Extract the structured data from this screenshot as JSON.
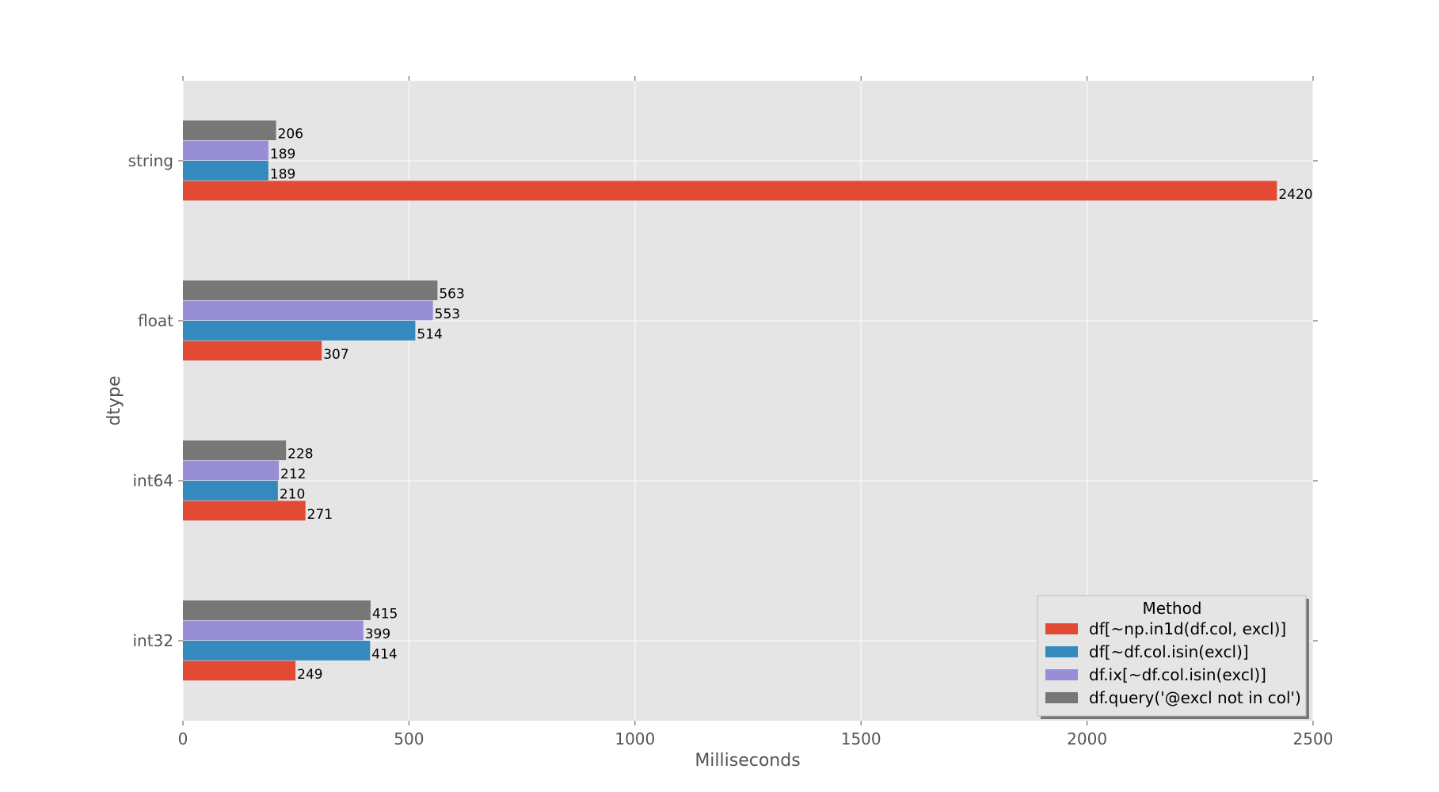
{
  "chart_data": {
    "type": "bar",
    "orientation": "horizontal",
    "categories": [
      "int32",
      "int64",
      "float",
      "string"
    ],
    "series": [
      {
        "name": "df[~np.in1d(df.col, excl)]",
        "values": [
          249,
          271,
          307,
          2420
        ],
        "color": "#E24A33"
      },
      {
        "name": "df[~df.col.isin(excl)]",
        "values": [
          414,
          210,
          514,
          189
        ],
        "color": "#348ABD"
      },
      {
        "name": "df.ix[~df.col.isin(excl)]",
        "values": [
          399,
          212,
          553,
          189
        ],
        "color": "#988ED5"
      },
      {
        "name": "df.query('@excl not in col')",
        "values": [
          415,
          228,
          563,
          206
        ],
        "color": "#777777"
      }
    ],
    "xlabel": "Milliseconds",
    "ylabel": "dtype",
    "xlim": [
      0,
      2500
    ],
    "xticks": [
      0,
      500,
      1000,
      1500,
      2000,
      2500
    ],
    "grid": true,
    "legend": {
      "title": "Method",
      "placement": "bottom-right"
    },
    "data_labels": true
  }
}
